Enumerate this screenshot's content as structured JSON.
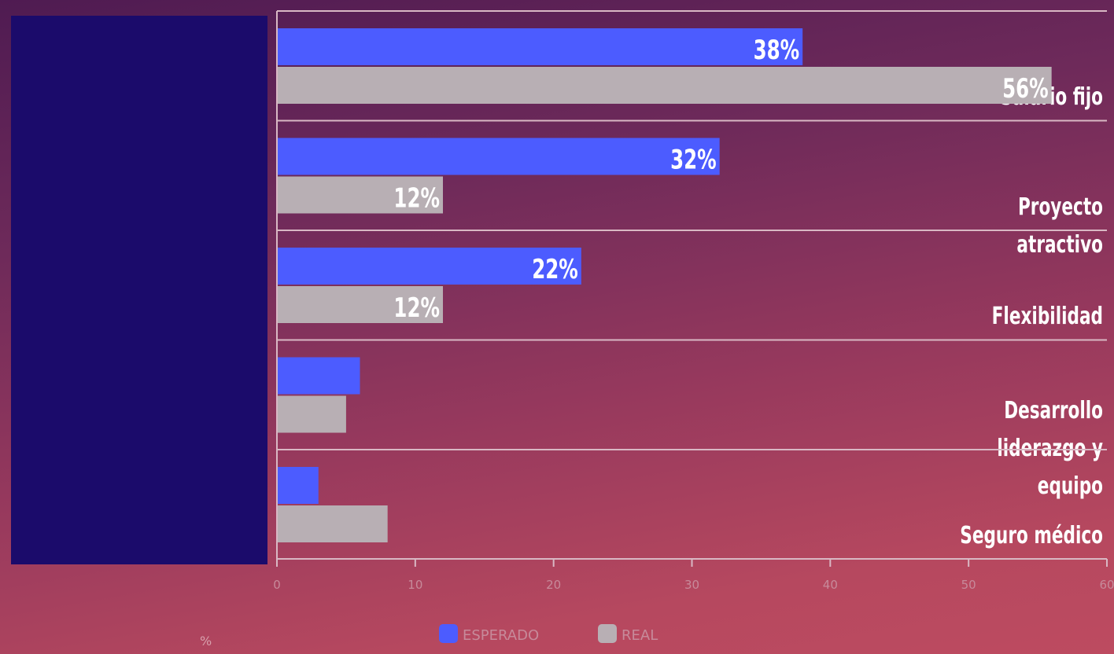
{
  "chart_data": {
    "type": "bar",
    "orientation": "horizontal",
    "categories": [
      "Salario fijo",
      "Proyecto atractivo",
      "Flexibilidad",
      "Desarrollo\nliderazgo y equipo",
      "Seguro médico"
    ],
    "series": [
      {
        "name": "ESPERADO",
        "color": "#4c5cff",
        "values": [
          38,
          32,
          22,
          6,
          3
        ],
        "labels": [
          "38%",
          "32%",
          "22%",
          "",
          ""
        ]
      },
      {
        "name": "REAL",
        "color": "#b8afb4",
        "values": [
          56,
          12,
          12,
          5,
          8
        ],
        "labels": [
          "56%",
          "12%",
          "12%",
          "",
          ""
        ]
      }
    ],
    "xlim": [
      0,
      60
    ],
    "xticks": [
      "0",
      "10",
      "20",
      "30",
      "40",
      "50",
      "60"
    ],
    "unit_label": "%",
    "grid": true,
    "legend_position": "bottom-center"
  },
  "colors": {
    "label_panel": "#1b0b6b",
    "grid_line": "#d9b8c4",
    "tick_text": "#c78a9a"
  }
}
